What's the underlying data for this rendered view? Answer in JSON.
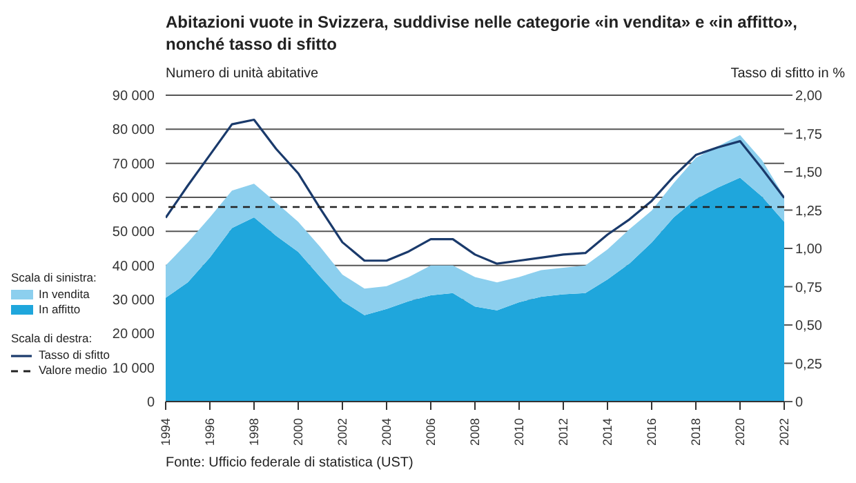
{
  "chart_data": {
    "type": "area",
    "title": "Abitazioni vuote in Svizzera, suddivise nelle categorie «in vendita» e «in affitto», nonché tasso di sfitto",
    "ylabel": "Numero di unità abitative",
    "y2label": "Tasso di sfitto in %",
    "legend_title": "Scala di sinistra:",
    "annotations": [
      "Scala di destra:",
      "Fonte: Ufficio federale di statistica (UST)"
    ],
    "x": [
      1994,
      1995,
      1996,
      1997,
      1998,
      1999,
      2000,
      2001,
      2002,
      2003,
      2004,
      2005,
      2006,
      2007,
      2008,
      2009,
      2010,
      2011,
      2012,
      2013,
      2014,
      2015,
      2016,
      2017,
      2018,
      2019,
      2020,
      2021,
      2022
    ],
    "xlim": [
      1994,
      2022
    ],
    "xticks": [
      1994,
      1996,
      1998,
      2000,
      2002,
      2004,
      2006,
      2008,
      2010,
      2012,
      2014,
      2016,
      2018,
      2020,
      2022
    ],
    "stacked": true,
    "series": [
      {
        "name": "In affitto",
        "color": "#1fa6dc",
        "values": [
          30500,
          35000,
          42300,
          51000,
          54100,
          48700,
          44000,
          36600,
          29500,
          25400,
          27200,
          29500,
          31200,
          31900,
          27900,
          26800,
          29200,
          30800,
          31500,
          31900,
          35900,
          40600,
          46700,
          54100,
          59500,
          62900,
          65800,
          60200,
          52800
        ]
      },
      {
        "name": "In vendita",
        "color": "#8ccfee",
        "values": [
          9500,
          11700,
          11800,
          11000,
          9900,
          9800,
          8800,
          8800,
          7800,
          7800,
          6700,
          7100,
          8800,
          8100,
          8700,
          8200,
          7400,
          7800,
          7800,
          8100,
          8800,
          10100,
          9400,
          10100,
          12100,
          12100,
          12500,
          10700,
          7400
        ]
      },
      {
        "name": "Tasso di sfitto",
        "type": "line",
        "axis": "y2",
        "color": "#1a3a6b",
        "values": [
          1.2,
          1.41,
          1.61,
          1.81,
          1.84,
          1.65,
          1.49,
          1.26,
          1.04,
          0.92,
          0.92,
          0.98,
          1.06,
          1.06,
          0.96,
          0.9,
          0.92,
          0.94,
          0.96,
          0.97,
          1.09,
          1.19,
          1.31,
          1.47,
          1.61,
          1.66,
          1.7,
          1.52,
          1.33
        ]
      }
    ],
    "ylim": [
      0,
      90000
    ],
    "yticks": [
      0,
      {
        "value": 10000,
        "label": "10 000"
      },
      {
        "value": 20000,
        "label": "20 000"
      },
      {
        "value": 30000,
        "label": "30 000"
      },
      {
        "value": 40000,
        "label": "40 000"
      },
      {
        "value": 50000,
        "label": "50 000"
      },
      {
        "value": 60000,
        "label": "60 000"
      },
      {
        "value": 70000,
        "label": "70 000"
      },
      {
        "value": 80000,
        "label": "80 000"
      },
      {
        "value": 90000,
        "label": "90 000"
      }
    ],
    "y2lim": [
      0,
      2
    ],
    "y2ticks": [
      0,
      {
        "value": 0.25,
        "label": "0,25"
      },
      {
        "value": 0.5,
        "label": "0,50"
      },
      {
        "value": 0.75,
        "label": "0,75"
      },
      {
        "value": 1,
        "label": "1,00"
      },
      {
        "value": 1.25,
        "label": "1,25"
      },
      {
        "value": 1.5,
        "label": "1,50"
      },
      {
        "value": 1.75,
        "label": "1,75"
      },
      {
        "value": 2,
        "label": "2,00"
      }
    ],
    "ref_lines": [
      {
        "axis": "y2",
        "value": 1.27,
        "label": "Valore medio",
        "color": "#222222",
        "line_style": "dashed"
      }
    ],
    "grid": "y",
    "legend": "left",
    "marker": "none",
    "line_style": "solid"
  }
}
